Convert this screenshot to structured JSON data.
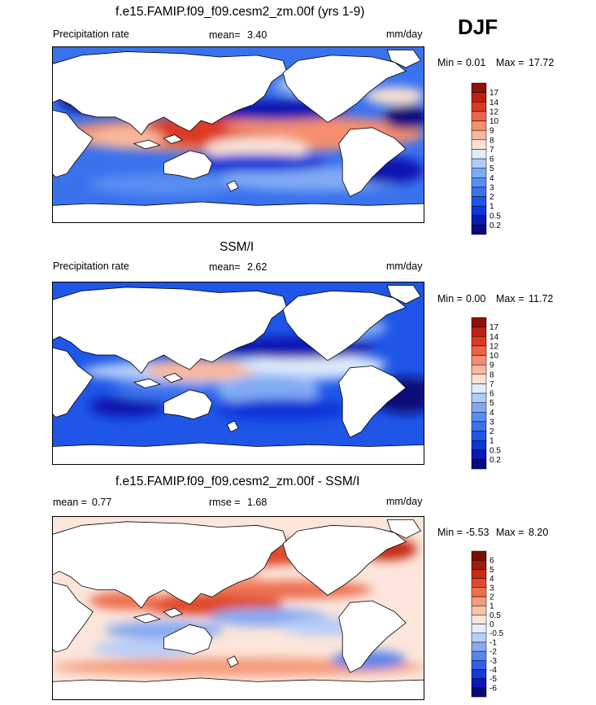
{
  "season": "DJF",
  "chart_data": [
    {
      "type": "heatmap",
      "title": "f.e15.FAMIP.f09_f09.cesm2_zm.00f (yrs 1-9)",
      "left_label": "Precipitation rate",
      "mean_label": "mean=",
      "mean_value": "3.40",
      "units": "mm/day",
      "min_label": "Min =",
      "min_value": "0.01",
      "max_label": "Max =",
      "max_value": "17.72",
      "min_max_text": "Min =   0.01 Max =  17.72",
      "levels": [
        "0.2",
        "0.5",
        "1",
        "2",
        "3",
        "4",
        "5",
        "6",
        "7",
        "8",
        "9",
        "10",
        "12",
        "14",
        "17"
      ],
      "colors": [
        "#0a0a7a",
        "#0818b0",
        "#0c36d8",
        "#1f56e8",
        "#3a72ee",
        "#5a8ef2",
        "#80aaf4",
        "#b0ccf8",
        "#e0ecfb",
        "#fbe1d4",
        "#f8b89c",
        "#f58f70",
        "#ee6448",
        "#dc3a20",
        "#bb2010",
        "#8e1008"
      ]
    },
    {
      "type": "heatmap",
      "title": "SSM/I",
      "left_label": "Precipitation rate",
      "mean_label": "mean=",
      "mean_value": "2.62",
      "units": "mm/day",
      "min_label": "Min =",
      "min_value": "0.00",
      "max_label": "Max =",
      "max_value": "11.72",
      "min_max_text": "Min =   0.00 Max =  11.72",
      "levels": [
        "0.2",
        "0.5",
        "1",
        "2",
        "3",
        "4",
        "5",
        "6",
        "7",
        "8",
        "9",
        "10",
        "12",
        "14",
        "17"
      ],
      "colors": [
        "#0a0a7a",
        "#0818b0",
        "#0c36d8",
        "#1f56e8",
        "#3a72ee",
        "#5a8ef2",
        "#80aaf4",
        "#b0ccf8",
        "#e0ecfb",
        "#fbe1d4",
        "#f8b89c",
        "#f58f70",
        "#ee6448",
        "#dc3a20",
        "#bb2010",
        "#8e1008"
      ]
    },
    {
      "type": "heatmap",
      "title": "f.e15.FAMIP.f09_f09.cesm2_zm.00f - SSM/I",
      "mean_label": "mean =",
      "mean_value": "0.77",
      "rmse_label": "rmse =",
      "rmse_value": "1.68",
      "units": "mm/day",
      "min_label": "Min =",
      "min_value": "-5.53",
      "max_label": "Max =",
      "max_value": "8.20",
      "min_max_text": "Min =  -5.53 Max =   8.20",
      "levels": [
        "-6",
        "-5",
        "-4",
        "-3",
        "-2",
        "-1",
        "-0.5",
        "0",
        "0.5",
        "1",
        "2",
        "3",
        "4",
        "5",
        "6"
      ],
      "colors": [
        "#06097a",
        "#0a18b8",
        "#1438dc",
        "#3460e4",
        "#5a86ec",
        "#88aaf2",
        "#b8cef8",
        "#e4eefc",
        "#fce6dc",
        "#f9c4aa",
        "#f59c7c",
        "#ee7050",
        "#e04a2c",
        "#c82a14",
        "#a41a0a",
        "#7a0e04"
      ]
    }
  ]
}
